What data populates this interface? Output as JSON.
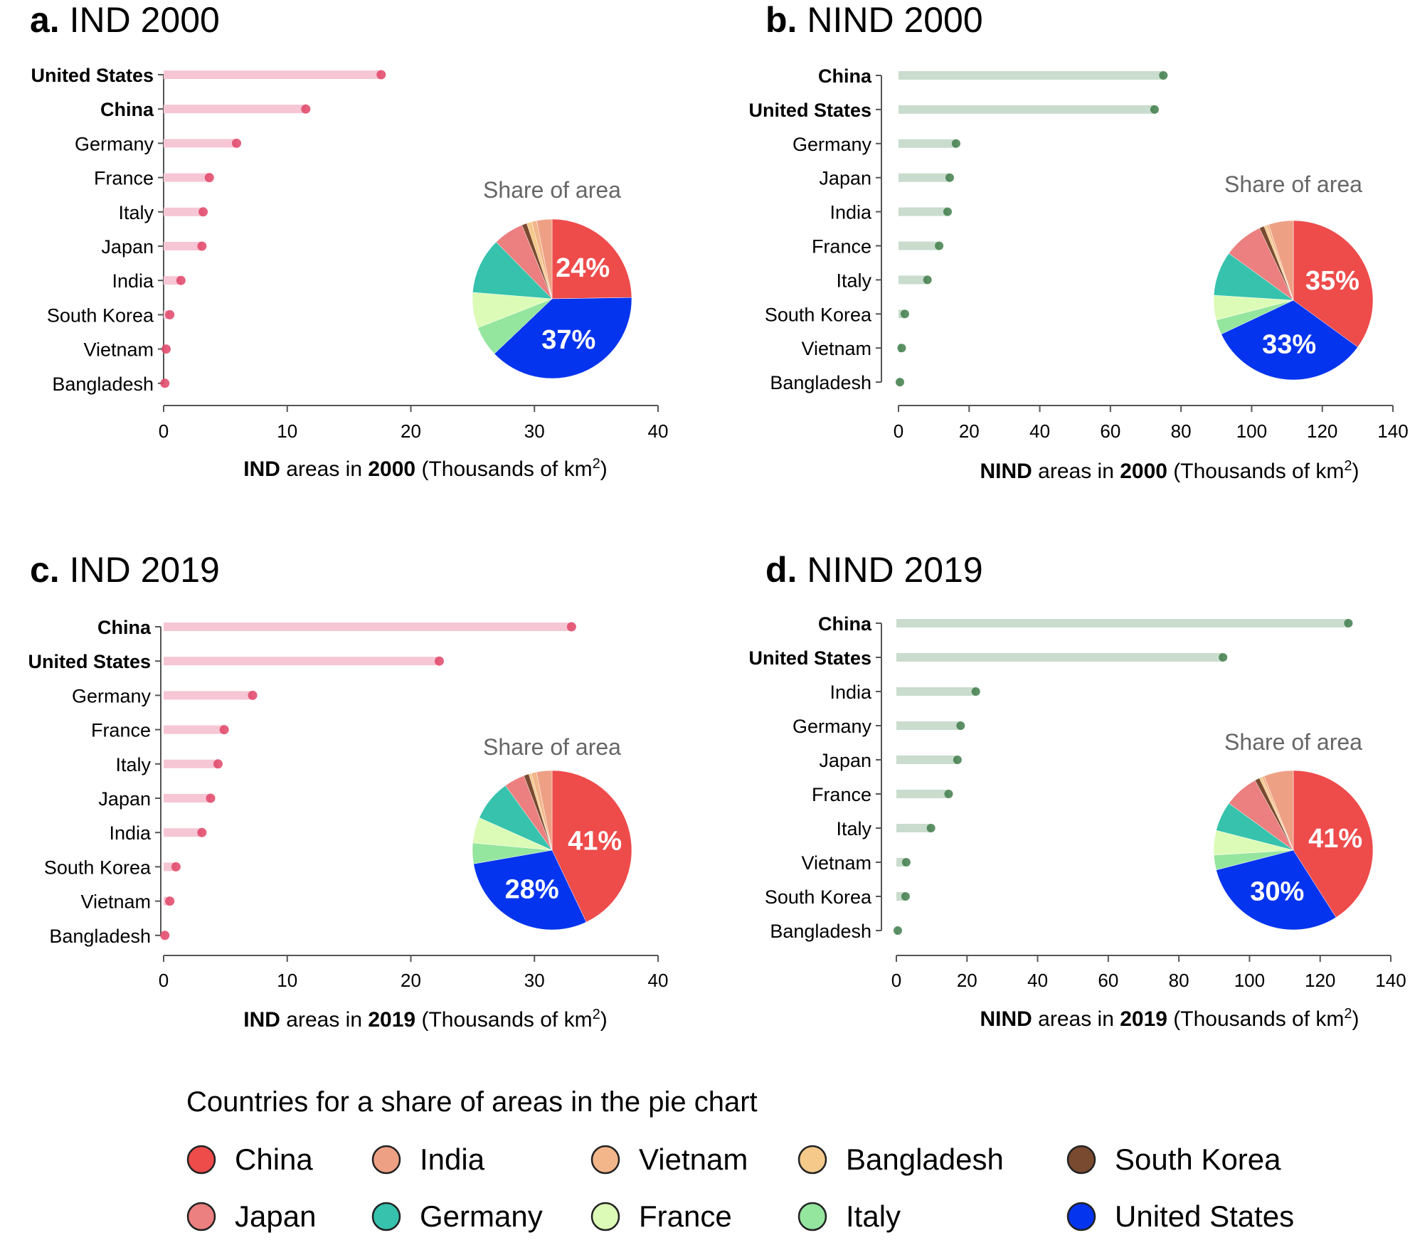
{
  "colors": {
    "China": "#ee4b4b",
    "India": "#eea084",
    "Vietnam": "#f2b68a",
    "Bangladesh": "#f4c98a",
    "South Korea": "#7a4a30",
    "Japan": "#ec7f7f",
    "Germany": "#36c2ad",
    "France": "#dcfbb6",
    "Italy": "#94e59e",
    "United States": "#0534ee",
    "ind_bar": "#f6c6d4",
    "ind_dot": "#e14466",
    "nind_bar": "#c9dccd",
    "nind_dot": "#3f7d4a"
  },
  "chart_data": [
    {
      "type": "bar",
      "orientation": "horizontal",
      "panel": "a.",
      "title": "IND 2000",
      "categories": [
        "United States",
        "China",
        "Germany",
        "France",
        "Italy",
        "Japan",
        "India",
        "South Korea",
        "Vietnam",
        "Bangladesh"
      ],
      "bold_categories": [
        "United States",
        "China"
      ],
      "values": [
        17.6,
        11.5,
        5.9,
        3.7,
        3.2,
        3.1,
        1.4,
        0.5,
        0.2,
        0.1
      ],
      "xlim": [
        0,
        40
      ],
      "xticks": [
        "0",
        "10",
        "20",
        "30",
        "40"
      ],
      "xlabel": {
        "pre": "IND",
        "mid": " areas in ",
        "year": "2000",
        "post": " (Thousands of km",
        "sup": "2",
        "end": ")"
      },
      "pie": {
        "title": "Share of area",
        "order": [
          "China",
          "United States",
          "Italy",
          "France",
          "Germany",
          "Japan",
          "South Korea",
          "Bangladesh",
          "Vietnam",
          "India"
        ],
        "values": [
          24,
          37,
          6,
          7,
          11,
          6,
          1,
          1,
          1,
          3
        ],
        "labels": {
          "China": "24%",
          "United States": "37%"
        }
      }
    },
    {
      "type": "bar",
      "orientation": "horizontal",
      "panel": "b.",
      "title": "NIND 2000",
      "categories": [
        "China",
        "United States",
        "Germany",
        "Japan",
        "India",
        "France",
        "Italy",
        "South Korea",
        "Vietnam",
        "Bangladesh"
      ],
      "bold_categories": [
        "China",
        "United States"
      ],
      "values": [
        75,
        72.5,
        16.3,
        14.5,
        13.9,
        11.5,
        8.2,
        1.8,
        0.9,
        0.4
      ],
      "xlim": [
        0,
        140
      ],
      "xticks": [
        "0",
        "20",
        "40",
        "60",
        "80",
        "100",
        "120",
        "140"
      ],
      "xlabel": {
        "pre": "NIND",
        "mid": " areas in ",
        "year": "2000",
        "post": " (Thousands of km",
        "sup": "2",
        "end": ")"
      },
      "pie": {
        "title": "Share of area",
        "order": [
          "China",
          "United States",
          "Italy",
          "France",
          "Germany",
          "Japan",
          "South Korea",
          "Bangladesh",
          "Vietnam",
          "India"
        ],
        "values": [
          35,
          33,
          3,
          5,
          9,
          8,
          1,
          0.5,
          0.5,
          5
        ],
        "labels": {
          "China": "35%",
          "United States": "33%"
        }
      }
    },
    {
      "type": "bar",
      "orientation": "horizontal",
      "panel": "c.",
      "title": "IND 2019",
      "categories": [
        "China",
        "United States",
        "Germany",
        "France",
        "Italy",
        "Japan",
        "India",
        "South Korea",
        "Vietnam",
        "Bangladesh"
      ],
      "bold_categories": [
        "China",
        "United States"
      ],
      "values": [
        33,
        22.3,
        7.2,
        4.9,
        4.4,
        3.8,
        3.1,
        1.0,
        0.5,
        0.1
      ],
      "xlim": [
        0,
        40
      ],
      "xticks": [
        "0",
        "10",
        "20",
        "30",
        "40"
      ],
      "xlabel": {
        "pre": "IND",
        "mid": " areas in ",
        "year": "2019",
        "post": " (Thousands of km",
        "sup": "2",
        "end": ")"
      },
      "pie": {
        "title": "Share of area",
        "order": [
          "China",
          "United States",
          "Italy",
          "France",
          "Germany",
          "Japan",
          "South Korea",
          "Bangladesh",
          "Vietnam",
          "India"
        ],
        "values": [
          41,
          28,
          4,
          5,
          8,
          4,
          1,
          0.5,
          1,
          3
        ],
        "labels": {
          "China": "41%",
          "United States": "28%"
        }
      }
    },
    {
      "type": "bar",
      "orientation": "horizontal",
      "panel": "d.",
      "title": "NIND 2019",
      "categories": [
        "China",
        "United States",
        "India",
        "Germany",
        "Japan",
        "France",
        "Italy",
        "Vietnam",
        "South Korea",
        "Bangladesh"
      ],
      "bold_categories": [
        "China",
        "United States"
      ],
      "values": [
        128,
        92.5,
        22.5,
        18.2,
        17.3,
        14.8,
        9.8,
        2.8,
        2.6,
        0.4
      ],
      "xlim": [
        0,
        140
      ],
      "xticks": [
        "0",
        "20",
        "40",
        "60",
        "80",
        "100",
        "120",
        "140"
      ],
      "xlabel": {
        "pre": "NIND",
        "mid": " areas in ",
        "year": "2019",
        "post": " (Thousands of km",
        "sup": "2",
        "end": ")"
      },
      "pie": {
        "title": "Share of area",
        "order": [
          "China",
          "United States",
          "Italy",
          "France",
          "Germany",
          "Japan",
          "South Korea",
          "Bangladesh",
          "Vietnam",
          "India"
        ],
        "values": [
          41,
          30,
          3,
          5,
          6,
          7,
          1,
          0.5,
          0.5,
          6
        ],
        "labels": {
          "China": "41%",
          "United States": "30%"
        }
      }
    }
  ],
  "legend": {
    "title": "Countries for a share of areas in the pie chart",
    "items": [
      "China",
      "India",
      "Vietnam",
      "Bangladesh",
      "South Korea",
      "Japan",
      "Germany",
      "France",
      "Italy",
      "United States"
    ]
  }
}
